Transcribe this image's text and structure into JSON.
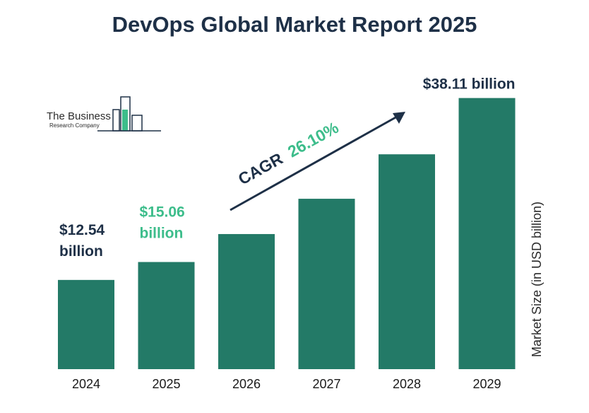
{
  "chart_data": {
    "type": "bar",
    "title": "DevOps Global Market Report 2025",
    "xlabel": "",
    "ylabel": "Market Size (in USD billion)",
    "categories": [
      "2024",
      "2025",
      "2026",
      "2027",
      "2028",
      "2029"
    ],
    "values": [
      12.54,
      15.06,
      18.99,
      23.95,
      30.2,
      38.11
    ],
    "ylim": [
      0,
      40
    ],
    "grid": false,
    "legend": "none",
    "bar_color": "#237a67",
    "data_labels": [
      {
        "category": "2024",
        "line1": "$12.54",
        "line2": "billion",
        "color": "#1e3047"
      },
      {
        "category": "2025",
        "line1": "$15.06",
        "line2": "billion",
        "color": "#3dbd8b"
      },
      {
        "category": "2029",
        "line1": "$38.11 billion",
        "line2": "",
        "color": "#1e3047"
      }
    ],
    "annotation": {
      "label": "CAGR",
      "value": "26.10%",
      "label_color": "#1e3047",
      "value_color": "#3dbd8b"
    }
  },
  "logo": {
    "line1": "The Business",
    "line2": "Research Company",
    "accent": "#3dbd8b",
    "outline": "#1e3047"
  }
}
